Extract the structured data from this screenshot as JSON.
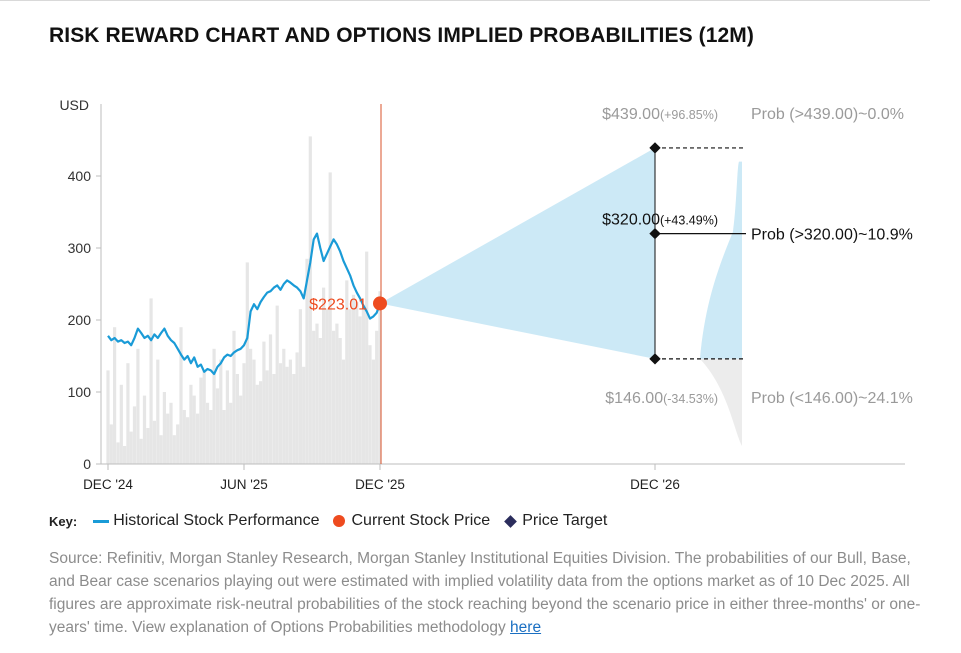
{
  "title": "RISK REWARD CHART AND OPTIONS IMPLIED PROBABILITIES (12M)",
  "key": {
    "label": "Key:",
    "items": [
      {
        "label": "Historical Stock Performance",
        "icon": "line-swatch",
        "color": "#1a9bd7"
      },
      {
        "label": "Current Stock Price",
        "icon": "dot-swatch",
        "color": "#ee4b1f"
      },
      {
        "label": "Price Target",
        "icon": "diamond-swatch",
        "color": "#2b2d5c"
      }
    ]
  },
  "source": {
    "text": "Source: Refinitiv, Morgan Stanley Research, Morgan Stanley Institutional Equities Division. The probabilities of our Bull, Base, and Bear case scenarios playing out were estimated with implied volatility data from the options market as of 10 Dec 2025. All figures are approximate risk-neutral probabilities of the stock reaching beyond the scenario price in either three-months' or one-years' time. View explanation of Options Probabilities methodology",
    "link_text": "here"
  },
  "chart_data": {
    "type": "line",
    "ylabel": "USD",
    "ylim": [
      0,
      500
    ],
    "yticks": [
      0,
      100,
      200,
      300,
      400
    ],
    "xtick_labels": [
      "DEC '24",
      "JUN '25",
      "DEC '25",
      "DEC '26"
    ],
    "colors": {
      "price": "#1a9bd7",
      "current": "#ee4b1f",
      "volume": "#e6e6e6",
      "cone": "#cce9f6",
      "bear": "#ececec",
      "marker": "#111111",
      "divider": "#d9532b"
    },
    "history": {
      "name": "Historical Stock Performance",
      "values": [
        178,
        172,
        175,
        170,
        172,
        168,
        170,
        165,
        175,
        188,
        182,
        175,
        178,
        172,
        180,
        175,
        182,
        188,
        178,
        172,
        168,
        160,
        152,
        145,
        150,
        140,
        148,
        135,
        138,
        128,
        132,
        130,
        125,
        135,
        140,
        148,
        152,
        150,
        155,
        158,
        160,
        165,
        175,
        212,
        222,
        215,
        225,
        232,
        238,
        240,
        245,
        248,
        242,
        250,
        255,
        252,
        248,
        245,
        240,
        230,
        255,
        280,
        312,
        320,
        300,
        282,
        292,
        302,
        312,
        305,
        295,
        282,
        272,
        262,
        248,
        238,
        230,
        220,
        212,
        202,
        205,
        210,
        223.01
      ]
    },
    "volume": {
      "values": [
        130,
        55,
        190,
        30,
        110,
        25,
        140,
        45,
        80,
        160,
        35,
        95,
        50,
        230,
        60,
        145,
        40,
        100,
        70,
        85,
        40,
        55,
        190,
        75,
        65,
        110,
        95,
        70,
        120,
        130,
        85,
        75,
        160,
        105,
        145,
        75,
        130,
        85,
        185,
        125,
        95,
        140,
        280,
        160,
        145,
        110,
        115,
        170,
        130,
        180,
        125,
        220,
        140,
        160,
        135,
        145,
        125,
        155,
        215,
        135,
        285,
        455,
        185,
        195,
        175,
        245,
        215,
        405,
        185,
        195,
        175,
        145,
        255,
        215,
        235,
        225,
        205,
        215,
        295,
        165,
        145,
        185,
        240
      ]
    },
    "current": {
      "label": "$223.01",
      "value": 223.01
    },
    "targets": [
      {
        "case": "bull",
        "value": 439,
        "price": "$439.00",
        "change": "(+96.85%)",
        "prob": "Prob (>439.00)~0.0%"
      },
      {
        "case": "base",
        "value": 320,
        "price": "$320.00",
        "change": "(+43.49%)",
        "prob": "Prob (>320.00)~10.9%"
      },
      {
        "case": "bear",
        "value": 146,
        "price": "$146.00",
        "change": "(-34.53%)",
        "prob": "Prob (<146.00)~24.1%"
      }
    ]
  }
}
